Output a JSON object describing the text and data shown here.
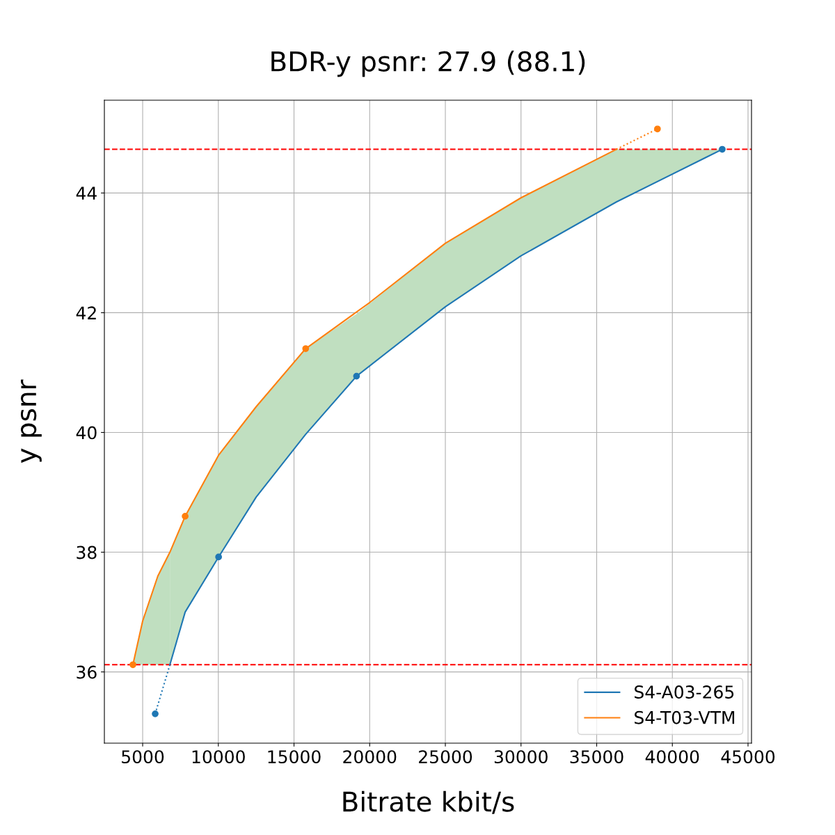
{
  "chart_data": {
    "type": "line",
    "title": "BDR-y psnr: 27.9 (88.1)",
    "xlabel": "Bitrate kbit/s",
    "ylabel": "y psnr",
    "xlim": [
      2470,
      45230
    ],
    "xticks": [
      5000,
      10000,
      15000,
      20000,
      25000,
      30000,
      35000,
      40000,
      45000
    ],
    "ylim": [
      34.81,
      45.55
    ],
    "yticks": [
      36,
      38,
      40,
      42,
      44
    ],
    "grid": true,
    "legend": "bottom right",
    "series": [
      {
        "name": "S4-A03-265",
        "color": "#1f77b4",
        "line_style": "solid",
        "x": [
          6800,
          7808,
          10017,
          12500,
          15771,
          19131,
          25000,
          30000,
          36300,
          43297
        ],
        "values": [
          36.12,
          37.0,
          37.92,
          38.92,
          39.97,
          40.94,
          42.1,
          42.95,
          43.85,
          44.73
        ],
        "lower": [
          36.12,
          37.0,
          37.92,
          38.92,
          39.97,
          40.94,
          42.1,
          42.95,
          43.85,
          44.73
        ],
        "upper": [
          38.0,
          38.6,
          39.62,
          40.43,
          41.4,
          41.98,
          43.16,
          43.92,
          44.73,
          44.73
        ]
      },
      {
        "name": "S4-T03-VTM",
        "color": "#ff7f0e",
        "line_style": "solid",
        "x": [
          4356,
          5000,
          6000,
          6800,
          7808,
          10017,
          12500,
          15771,
          20000,
          25000,
          30000,
          36300
        ],
        "values": [
          36.12,
          36.85,
          37.6,
          38.0,
          38.6,
          39.62,
          40.43,
          41.4,
          42.17,
          43.16,
          43.92,
          44.73
        ],
        "lower": [
          36.12,
          36.12,
          36.12,
          36.12,
          null,
          null,
          null,
          null,
          null,
          null,
          null,
          null
        ],
        "upper": [
          36.12,
          36.85,
          37.6,
          38.0,
          null,
          null,
          null,
          null,
          null,
          null,
          null,
          null
        ]
      },
      {
        "color": "#1f77b4",
        "line_style": "dotted",
        "x": [
          5828,
          6800
        ],
        "values": [
          35.3,
          36.12
        ]
      },
      {
        "color": "#ff7f0e",
        "line_style": "dotted",
        "x": [
          36300,
          39016
        ],
        "values": [
          44.73,
          45.07
        ]
      },
      {
        "type": "scatter",
        "color": "#1f77b4",
        "marker": "circle",
        "x": [
          5828,
          10017,
          19131,
          43297
        ],
        "values": [
          35.3,
          37.92,
          40.94,
          44.73
        ]
      },
      {
        "type": "scatter",
        "color": "#ff7f0e",
        "marker": "circle",
        "x": [
          4356,
          7808,
          15771,
          39016
        ],
        "values": [
          36.12,
          38.6,
          41.4,
          45.07
        ]
      }
    ],
    "ref_lines": [
      {
        "axis": "y",
        "value": 36.12,
        "color": "#ff0000",
        "line_style": "dashed"
      },
      {
        "axis": "y",
        "value": 44.73,
        "color": "#ff0000",
        "line_style": "dashed"
      }
    ]
  }
}
